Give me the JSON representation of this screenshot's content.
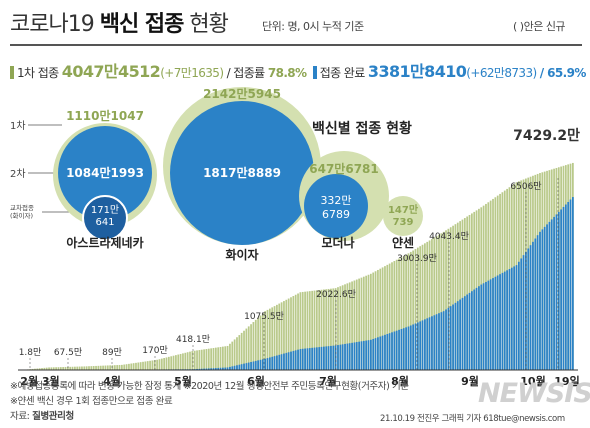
{
  "header": {
    "title_main": "코로나19",
    "title_bold": "백신 접종",
    "title_end": "현황",
    "unit_note": "단위: 명, 0시 누적 기준",
    "paren_note": "( )안은 신규"
  },
  "stats": {
    "first_label": "1차 접종",
    "first_value": "4047만4512",
    "first_new": "(+7만1635)",
    "first_rate_label": "/ 접종률",
    "first_rate": "78.8%",
    "done_label": "접종 완료",
    "done_value": "3381만8410",
    "done_new": "(+62만8733)",
    "done_rate": "/ 65.9%"
  },
  "colors": {
    "first_dose": "#b9c98a",
    "second_dose": "#2b82c7",
    "accent_green": "#8fa654"
  },
  "bubbles": {
    "legend": [
      "1차",
      "2차",
      "교차접종\n(화이자)"
    ],
    "legend_line1": "교차접종",
    "legend_line2": "(화이자)",
    "title": "백신별 접종 현황",
    "items": [
      {
        "name": "아스트라제네카",
        "first": "1110만1047",
        "second": "1084만1993",
        "cross_1": "171만",
        "cross_2": "641",
        "first_value": 11101047,
        "second_value": 10841993,
        "cross_value": 1710641
      },
      {
        "name": "화이자",
        "first": "2142만5945",
        "second": "1817만8889",
        "first_value": 21425945,
        "second_value": 18178889
      },
      {
        "name": "모더나",
        "first": "647만6781",
        "second_1": "332만",
        "second_2": "6789",
        "first_value": 6476781,
        "second_value": 3326789
      },
      {
        "name": "얀센",
        "first": "147만",
        "second": "739",
        "first_value": 1470739
      }
    ]
  },
  "chart_data": {
    "type": "bar",
    "title": "",
    "x_range": [
      "2021-02-26",
      "2021-10-19"
    ],
    "x_ticks": [
      "2월 3월",
      "4월",
      "5월",
      "6월",
      "7월",
      "8월",
      "9월",
      "10월",
      "19일"
    ],
    "series": [
      {
        "name": "1차 접종",
        "values_note": "cumulative (만 명)"
      },
      {
        "name": "접종 완료",
        "values_note": "cumulative (만 명)"
      }
    ],
    "points_first": [
      [
        "2021-02-26",
        0
      ],
      [
        "2021-03-10",
        50
      ],
      [
        "2021-03-25",
        70
      ],
      [
        "2021-04-10",
        100
      ],
      [
        "2021-04-25",
        200
      ],
      [
        "2021-05-10",
        370
      ],
      [
        "2021-05-25",
        470
      ],
      [
        "2021-06-10",
        1150
      ],
      [
        "2021-06-25",
        1520
      ],
      [
        "2021-07-10",
        1600
      ],
      [
        "2021-07-25",
        1880
      ],
      [
        "2021-08-10",
        2280
      ],
      [
        "2021-08-25",
        2700
      ],
      [
        "2021-09-10",
        3180
      ],
      [
        "2021-09-25",
        3670
      ],
      [
        "2021-10-05",
        3850
      ],
      [
        "2021-10-19",
        4047
      ]
    ],
    "points_done": [
      [
        "2021-02-26",
        0
      ],
      [
        "2021-04-10",
        5
      ],
      [
        "2021-05-10",
        15
      ],
      [
        "2021-05-25",
        50
      ],
      [
        "2021-06-10",
        220
      ],
      [
        "2021-06-25",
        410
      ],
      [
        "2021-07-10",
        480
      ],
      [
        "2021-07-25",
        590
      ],
      [
        "2021-08-10",
        850
      ],
      [
        "2021-08-25",
        1150
      ],
      [
        "2021-09-10",
        1670
      ],
      [
        "2021-09-25",
        2050
      ],
      [
        "2021-10-05",
        2700
      ],
      [
        "2021-10-19",
        3381
      ]
    ],
    "annotations": [
      {
        "date": "2021-02-28",
        "label": "1.8만"
      },
      {
        "date": "2021-03-15",
        "label": "67.5만"
      },
      {
        "date": "2021-03-31",
        "label": "89만"
      },
      {
        "date": "2021-04-30",
        "label": "170만"
      },
      {
        "date": "2021-05-31",
        "label": "418.1만"
      },
      {
        "date": "2021-06-13",
        "label": "1075.5만"
      },
      {
        "date": "2021-07-13",
        "label": "2022.6만"
      },
      {
        "date": "2021-08-15",
        "label": "3003.9만"
      },
      {
        "date": "2021-08-31",
        "label": "4043.4만"
      },
      {
        "date": "2021-10-01",
        "label": "6506만"
      },
      {
        "date": "2021-10-19",
        "label": "7429.2만",
        "emphasis": true
      }
    ]
  },
  "footer": {
    "note1": "※예방접종등록에 따라 변동 가능한 잠정 통계",
    "note2": "※2020년 12월 행정안전부 주민등록인구현황(거주자) 기준",
    "note3": "※얀센 백신 경우 1회 접종만으로 접종 완료",
    "source_label": "자료: ",
    "source": "질병관리청",
    "credit": "21.10.19 전진우 그래픽 기자 618tue@newsis.com",
    "logo": "NEWSIS"
  }
}
